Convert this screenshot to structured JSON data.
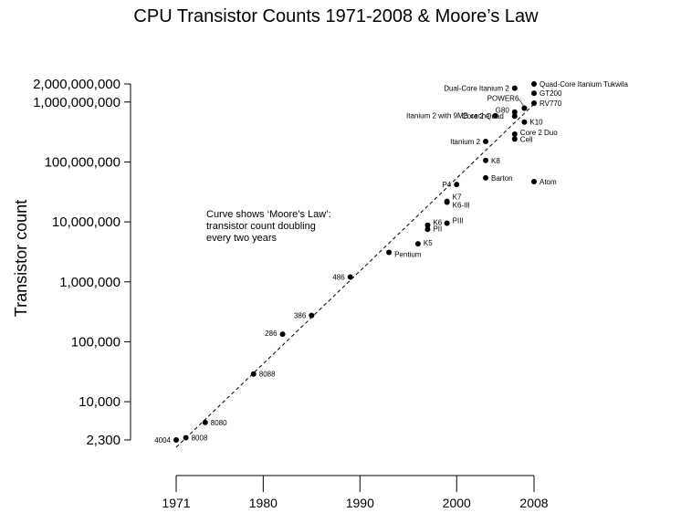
{
  "chart_data": {
    "type": "scatter",
    "title": "CPU Transistor Counts 1971-2008 & Moore’s Law",
    "ylabel": "Transistor count",
    "xlabel": "",
    "yscale": "log",
    "xlim": [
      1971,
      2008
    ],
    "ylim": [
      2300,
      2000000000
    ],
    "y_ticks": [
      {
        "value": 2000000000,
        "label": "2,000,000,000"
      },
      {
        "value": 1000000000,
        "label": "1,000,000,000"
      },
      {
        "value": 100000000,
        "label": "100,000,000"
      },
      {
        "value": 10000000,
        "label": "10,000,000"
      },
      {
        "value": 1000000,
        "label": "1,000,000"
      },
      {
        "value": 100000,
        "label": "100,000"
      },
      {
        "value": 10000,
        "label": "10,000"
      },
      {
        "value": 2300,
        "label": "2,300"
      }
    ],
    "x_ticks": [
      {
        "value": 1971,
        "label": "1971"
      },
      {
        "value": 1980,
        "label": "1980"
      },
      {
        "value": 1990,
        "label": "1990"
      },
      {
        "value": 2000,
        "label": "2000"
      },
      {
        "value": 2008,
        "label": "2008"
      }
    ],
    "points": [
      {
        "label": "4004",
        "x": 1971,
        "y": 2300
      },
      {
        "label": "8008",
        "x": 1972,
        "y": 2500
      },
      {
        "label": "8080",
        "x": 1974,
        "y": 4500
      },
      {
        "label": "8088",
        "x": 1979,
        "y": 29000
      },
      {
        "label": "286",
        "x": 1982,
        "y": 134000
      },
      {
        "label": "386",
        "x": 1985,
        "y": 275000
      },
      {
        "label": "486",
        "x": 1989,
        "y": 1200000
      },
      {
        "label": "Pentium",
        "x": 1993,
        "y": 3100000
      },
      {
        "label": "K5",
        "x": 1996,
        "y": 4300000
      },
      {
        "label": "PII",
        "x": 1997,
        "y": 7500000
      },
      {
        "label": "K6",
        "x": 1997,
        "y": 8800000
      },
      {
        "label": "PIII",
        "x": 1999,
        "y": 9500000
      },
      {
        "label": "K6-III",
        "x": 1999,
        "y": 21300000
      },
      {
        "label": "K7",
        "x": 1999,
        "y": 22000000
      },
      {
        "label": "P4",
        "x": 2000,
        "y": 42000000
      },
      {
        "label": "Barton",
        "x": 2003,
        "y": 54300000
      },
      {
        "label": "K8",
        "x": 2003,
        "y": 105900000
      },
      {
        "label": "Itanium 2",
        "x": 2003,
        "y": 220000000
      },
      {
        "label": "Itanium 2 with 9MB cache",
        "x": 2004,
        "y": 592000000
      },
      {
        "label": "Core 2 Duo",
        "x": 2006,
        "y": 291000000
      },
      {
        "label": "Cell",
        "x": 2006,
        "y": 241000000
      },
      {
        "label": "Core 2 Quad",
        "x": 2006,
        "y": 582000000
      },
      {
        "label": "G80",
        "x": 2006,
        "y": 681000000
      },
      {
        "label": "K10",
        "x": 2007,
        "y": 463000000
      },
      {
        "label": "POWER6",
        "x": 2007,
        "y": 789000000
      },
      {
        "label": "Dual-Core Itanium 2",
        "x": 2006,
        "y": 1700000000
      },
      {
        "label": "Atom",
        "x": 2008,
        "y": 47000000
      },
      {
        "label": "RV770",
        "x": 2008,
        "y": 956000000
      },
      {
        "label": "GT200",
        "x": 2008,
        "y": 1400000000
      },
      {
        "label": "Quad-Core Itanium Tukwila",
        "x": 2008,
        "y": 2000000000
      }
    ],
    "annotation": {
      "lines": [
        "Curve shows ‘Moore’s Law’:",
        "transistor count doubling",
        "every two years"
      ]
    },
    "trend": {
      "type": "line",
      "style": "dashed",
      "from": [
        1971,
        2300
      ],
      "to": [
        2008,
        2000000000
      ]
    }
  }
}
